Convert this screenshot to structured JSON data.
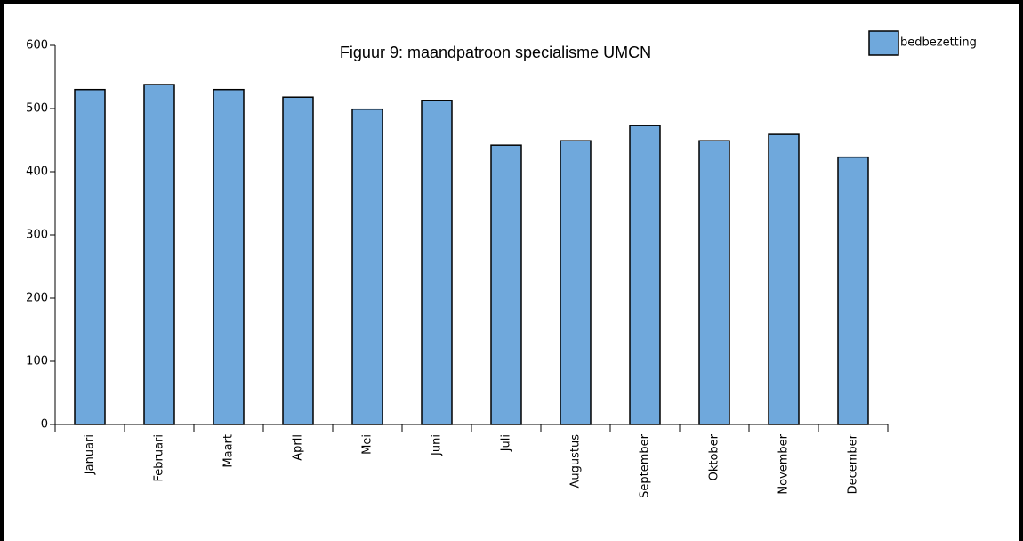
{
  "chart_data": {
    "type": "bar",
    "title": "Figuur 9: maandpatroon specialisme UMCN",
    "categories": [
      "Januari",
      "Februari",
      "Maart",
      "April",
      "Mei",
      "Juni",
      "Juli",
      "Augustus",
      "September",
      "Oktober",
      "November",
      "December"
    ],
    "series": [
      {
        "name": "bedbezetting",
        "color": "#6fa8dc",
        "values": [
          530,
          538,
          530,
          518,
          499,
          513,
          442,
          449,
          473,
          449,
          459,
          423
        ]
      }
    ],
    "ylim": [
      0,
      600
    ],
    "yticks": [
      0,
      100,
      200,
      300,
      400,
      500,
      600
    ],
    "legend": "upper right"
  }
}
